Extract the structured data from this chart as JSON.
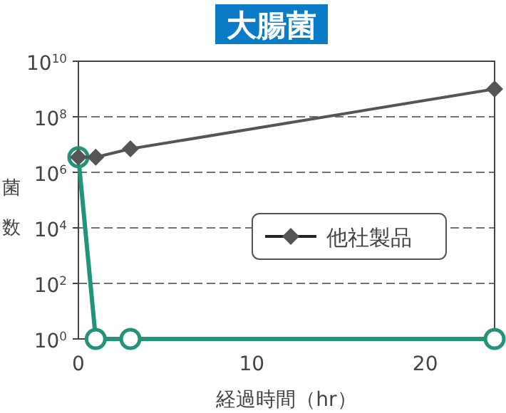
{
  "chart_data": {
    "type": "line",
    "title": "大腸菌",
    "xlabel": "経過時間（hr）",
    "ylabel": "菌数",
    "log": "y",
    "xlim": [
      0,
      24
    ],
    "xticks": [
      0,
      10,
      20
    ],
    "ylim": [
      1,
      10000000000
    ],
    "yticks": [
      {
        "value": 1,
        "label": "10$^{0}$"
      },
      {
        "value": 100,
        "label": "10$^{2}$"
      },
      {
        "value": 10000,
        "label": "10$^{4}$"
      },
      {
        "value": 1000000,
        "label": "10$^{6}$"
      },
      {
        "value": 100000000,
        "label": "10$^{8}$"
      },
      {
        "value": 10000000000,
        "label": "10$^{10}$"
      }
    ],
    "grid": "y",
    "legend": "right",
    "series": [
      {
        "name": "他社製品",
        "color": "#555555",
        "marker": "diamond",
        "x": [
          0,
          1,
          3,
          24
        ],
        "values": [
          3500000,
          3500000,
          7000000,
          1000000000
        ]
      },
      {
        "color": "#23937a",
        "marker": "circle",
        "x": [
          0,
          1,
          3,
          24
        ],
        "values": [
          3500000,
          1,
          1,
          1
        ]
      }
    ]
  }
}
